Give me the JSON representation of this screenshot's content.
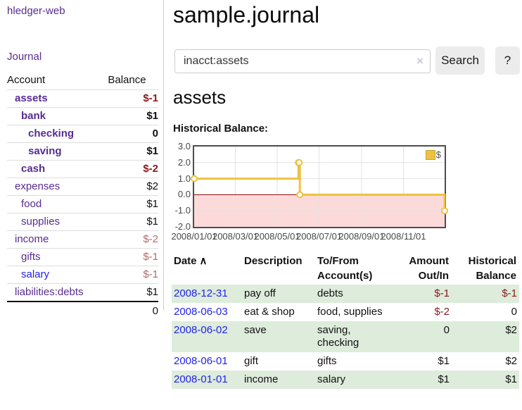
{
  "colors": {
    "brand_purple": "#572c90",
    "link_blue": "#2222ee",
    "negative_strong_red": "#8b1a1a",
    "negative_muted_red": "#b36a6a",
    "row_stripe_green": "#ddecdb",
    "chart_line_gold": "#edc240",
    "chart_negative_region_pink": "#fcdada",
    "chart_zero_line_red": "#8b0000"
  },
  "app": {
    "brand": "hledger-web"
  },
  "sidebar": {
    "nav": {
      "journal": "Journal"
    },
    "headers": {
      "account": "Account",
      "balance": "Balance"
    },
    "accounts": [
      {
        "name": "assets",
        "indent": 1,
        "bold": true,
        "balance": "$-1",
        "negative": "strong"
      },
      {
        "name": "bank",
        "indent": 2,
        "bold": true,
        "balance": "$1"
      },
      {
        "name": "checking",
        "indent": 3,
        "bold": true,
        "balance": "0"
      },
      {
        "name": "saving",
        "indent": 3,
        "bold": true,
        "balance": "$1"
      },
      {
        "name": "cash",
        "indent": 2,
        "bold": true,
        "balance": "$-2",
        "negative": "strong"
      },
      {
        "name": "expenses",
        "indent": 1,
        "bold": false,
        "balance": "$2"
      },
      {
        "name": "food",
        "indent": 2,
        "bold": false,
        "balance": "$1"
      },
      {
        "name": "supplies",
        "indent": 2,
        "bold": false,
        "balance": "$1"
      },
      {
        "name": "income",
        "indent": 1,
        "bold": false,
        "balance": "$-2",
        "negative": "muted"
      },
      {
        "name": "gifts",
        "indent": 2,
        "bold": false,
        "balance": "$-1",
        "negative": "muted"
      },
      {
        "name": "salary",
        "indent": 2,
        "bold": false,
        "balance": "$-1",
        "negative": "muted",
        "link_color": "blue"
      },
      {
        "name": "liabilities:debts",
        "indent": 1,
        "bold": false,
        "balance": "$1"
      }
    ],
    "total": "0"
  },
  "main": {
    "title": "sample.journal",
    "search": {
      "value": "inacct:assets",
      "clear_icon": "×",
      "search_button": "Search",
      "help_button": "?"
    },
    "section_title": "assets",
    "chart_label": "Historical Balance:"
  },
  "chart_data": {
    "type": "line",
    "step": true,
    "title": "Historical Balance",
    "series": [
      {
        "name": "$",
        "color": "#edc240",
        "points": [
          [
            "2008-01-01",
            1
          ],
          [
            "2008-06-01",
            2
          ],
          [
            "2008-06-02",
            2
          ],
          [
            "2008-06-03",
            0
          ],
          [
            "2008-12-31",
            -1
          ]
        ]
      }
    ],
    "xlim": [
      "2008-01-01",
      "2008-12-31"
    ],
    "ylim": [
      -2,
      3
    ],
    "xticks": [
      {
        "date": "2008-01-01",
        "label": "2008/01/01"
      },
      {
        "date": "2008-03-01",
        "label": "2008/03/01"
      },
      {
        "date": "2008-05-01",
        "label": "2008/05/01"
      },
      {
        "date": "2008-07-01",
        "label": "2008/07/01"
      },
      {
        "date": "2008-09-01",
        "label": "2008/09/01"
      },
      {
        "date": "2008-11-01",
        "label": "2008/11/01"
      }
    ],
    "yticks": [
      {
        "value": -2,
        "label": "-2.0"
      },
      {
        "value": -1,
        "label": "-1.0"
      },
      {
        "value": 0,
        "label": "0.0"
      },
      {
        "value": 1,
        "label": "1.0"
      },
      {
        "value": 2,
        "label": "2.0"
      },
      {
        "value": 3,
        "label": "3.0"
      }
    ],
    "legend": {
      "label": "$",
      "position": "top-right"
    },
    "grid": true,
    "zero_line_color": "#8b0000",
    "negative_region_color": "#fcdada",
    "line_width": 3,
    "marker": "circle"
  },
  "register": {
    "headers": {
      "date": "Date",
      "sort_icon": "∧",
      "description": "Description",
      "accounts": "To/From Account(s)",
      "amount": "Amount Out/In",
      "balance": "Historical Balance"
    },
    "rows": [
      {
        "date": "2008-12-31",
        "description": "pay off",
        "accounts": "debts",
        "amount": "$-1",
        "amount_negative": true,
        "balance": "$-1",
        "balance_negative": true
      },
      {
        "date": "2008-06-03",
        "description": "eat & shop",
        "accounts": "food, supplies",
        "amount": "$-2",
        "amount_negative": true,
        "balance": "0",
        "balance_negative": false
      },
      {
        "date": "2008-06-02",
        "description": "save",
        "accounts": "saving,\nchecking",
        "amount": "0",
        "amount_negative": false,
        "balance": "$2",
        "balance_negative": false
      },
      {
        "date": "2008-06-01",
        "description": "gift",
        "accounts": "gifts",
        "amount": "$1",
        "amount_negative": false,
        "balance": "$2",
        "balance_negative": false
      },
      {
        "date": "2008-01-01",
        "description": "income",
        "accounts": "salary",
        "amount": "$1",
        "amount_negative": false,
        "balance": "$1",
        "balance_negative": false
      }
    ]
  }
}
